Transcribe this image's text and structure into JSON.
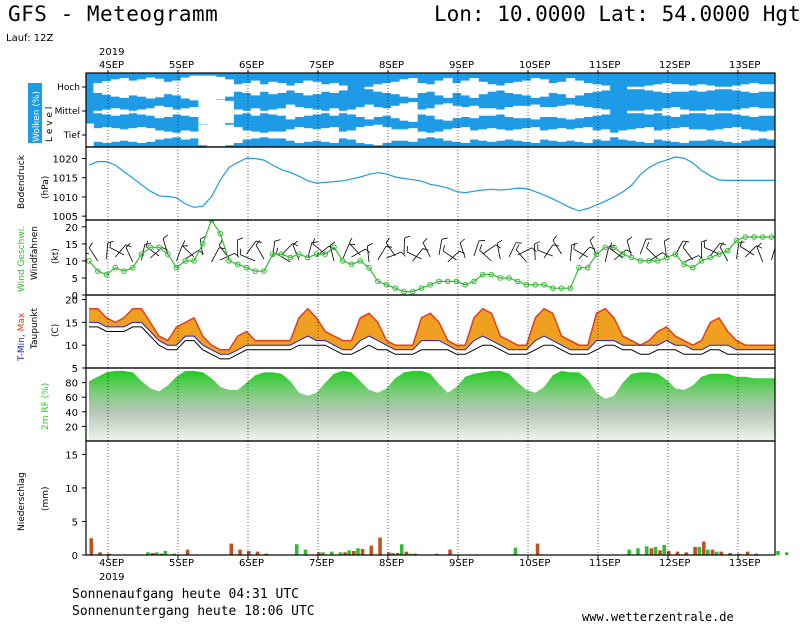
{
  "header": {
    "title": "GFS - Meteogramm",
    "coords": "Lon: 10.0000 Lat: 54.0000 Hgt: 2",
    "run": "Lauf: 12Z"
  },
  "footer": {
    "sunrise": "Sonnenaufgang heute 04:31 UTC",
    "sunset": "Sonnenuntergang heute 18:06 UTC",
    "url": "www.wetterzentrale.de"
  },
  "chart_data": {
    "type": "meteogram",
    "year": "2019",
    "days": [
      "4SEP",
      "5SEP",
      "6SEP",
      "7SEP",
      "8SEP",
      "9SEP",
      "10SEP",
      "11SEP",
      "12SEP",
      "13SEP"
    ],
    "time_step_hours": 3,
    "colors": {
      "cloud_sky": "#1e9be6",
      "pressure_line": "#1e9be6",
      "wind_line": "#33bb33",
      "tmax_fill": "#f0a020",
      "tmax_edge": "#e04020",
      "tmin_line": "#2020d0",
      "dewpoint_line": "#000000",
      "rh_fill": "#22cc22",
      "precip_conv": "#c05020",
      "precip_large": "#33bb33"
    },
    "panels": [
      {
        "id": "clouds",
        "ylabel": "Wolken (%)",
        "ylabel_sub": "L e v e l",
        "levels": [
          "Hoch",
          "Mittel",
          "Tief"
        ],
        "series": [
          {
            "name": "Hoch",
            "values": [
              0,
              40,
              55,
              70,
              80,
              60,
              70,
              85,
              75,
              50,
              60,
              85,
              100,
              100,
              100,
              90,
              70,
              30,
              40,
              60,
              30,
              50,
              40,
              20,
              40,
              60,
              50,
              30,
              40,
              20,
              0,
              0,
              10,
              30,
              40,
              50,
              70,
              80,
              40,
              30,
              60,
              80,
              40,
              60,
              80,
              50,
              30,
              20,
              40,
              50,
              60,
              80,
              70,
              40,
              50,
              80,
              60,
              40,
              30,
              20,
              0,
              0,
              10,
              10,
              20,
              30,
              40,
              30,
              30,
              20,
              30,
              20,
              10,
              10,
              20,
              30,
              40,
              30,
              30,
              20,
              10,
              10
            ]
          },
          {
            "name": "Mittel",
            "values": [
              0,
              10,
              20,
              30,
              20,
              10,
              20,
              30,
              50,
              40,
              20,
              30,
              40,
              100,
              100,
              100,
              90,
              20,
              10,
              30,
              10,
              20,
              30,
              60,
              40,
              30,
              20,
              10,
              30,
              10,
              20,
              40,
              60,
              40,
              30,
              50,
              70,
              80,
              20,
              30,
              60,
              70,
              50,
              40,
              50,
              30,
              30,
              20,
              40,
              50,
              50,
              60,
              40,
              40,
              50,
              60,
              50,
              40,
              30,
              20,
              0,
              0,
              10,
              10,
              20,
              10,
              30,
              40,
              20,
              10,
              10,
              20,
              10,
              10,
              20,
              30,
              40,
              30,
              30,
              20,
              10,
              10
            ]
          },
          {
            "name": "Tief",
            "values": [
              100,
              60,
              70,
              60,
              50,
              60,
              70,
              60,
              40,
              30,
              20,
              40,
              30,
              90,
              100,
              100,
              90,
              70,
              40,
              30,
              20,
              30,
              30,
              50,
              70,
              60,
              50,
              60,
              70,
              30,
              40,
              70,
              80,
              90,
              70,
              50,
              50,
              60,
              30,
              20,
              30,
              50,
              60,
              70,
              40,
              50,
              60,
              50,
              40,
              50,
              60,
              70,
              40,
              50,
              60,
              50,
              60,
              70,
              40,
              50,
              20,
              40,
              50,
              60,
              70,
              40,
              50,
              60,
              70,
              50,
              50,
              40,
              50,
              60,
              70,
              50,
              40,
              30,
              40,
              50,
              30,
              30
            ]
          }
        ]
      },
      {
        "id": "pressure",
        "ylabel": "Bodendruck",
        "ylabel_sub": "(hPa)",
        "ylim": [
          1004,
          1023
        ],
        "yticks": [
          1005,
          1010,
          1015,
          1020
        ],
        "series": [
          {
            "name": "Bodendruck",
            "values": [
              1018.3,
              1019.2,
              1019.2,
              1018.3,
              1016.6,
              1014.9,
              1013.2,
              1011.5,
              1010.3,
              1010.1,
              1009.8,
              1008.2,
              1007.3,
              1007.6,
              1010.1,
              1014.4,
              1017.7,
              1019.0,
              1020.1,
              1020.0,
              1019.6,
              1018.3,
              1017.1,
              1016.4,
              1015.4,
              1014.2,
              1013.6,
              1013.8,
              1014.0,
              1014.2,
              1014.7,
              1015.2,
              1015.9,
              1016.3,
              1016.0,
              1015.2,
              1014.8,
              1014.5,
              1014.1,
              1013.3,
              1012.9,
              1012.3,
              1011.4,
              1011.1,
              1011.5,
              1011.8,
              1012.0,
              1011.8,
              1012.0,
              1012.3,
              1012.2,
              1011.4,
              1010.5,
              1009.5,
              1008.4,
              1007.2,
              1006.4,
              1007.0,
              1007.9,
              1008.9,
              1010.0,
              1011.3,
              1013.0,
              1015.8,
              1017.6,
              1018.9,
              1019.6,
              1020.4,
              1020.1,
              1018.9,
              1016.9,
              1015.5,
              1014.4,
              1014.3,
              1014.3,
              1014.3,
              1014.3,
              1014.3,
              1014.3,
              1014.3,
              1014.3,
              1014.3
            ]
          }
        ]
      },
      {
        "id": "wind",
        "ylabel": "Wind Geschwi.",
        "ylabel_sub": "Windfahnen",
        "ylabel_unit": "(kt)",
        "ylim": [
          0,
          22
        ],
        "yticks": [
          0,
          5,
          10,
          15,
          20
        ],
        "series": [
          {
            "name": "Wind Geschwi.",
            "values": [
              10,
              7,
              6,
              8,
              7,
              8,
              12,
              14,
              14,
              12,
              8,
              10,
              10,
              15,
              22,
              18,
              10,
              9,
              8,
              7,
              7,
              12,
              12,
              11,
              12,
              11,
              12,
              12,
              14,
              10,
              9,
              10,
              8,
              4,
              3,
              2,
              1,
              1,
              2,
              3,
              4,
              4,
              4,
              3,
              4,
              6,
              6,
              5,
              5,
              4,
              3,
              3,
              3,
              2,
              2,
              2,
              8,
              8,
              12,
              14,
              14,
              12,
              11,
              10,
              10,
              10,
              11,
              12,
              9,
              8,
              10,
              11,
              12,
              13,
              16,
              17,
              17,
              17,
              17,
              17,
              17,
              17
            ]
          }
        ]
      },
      {
        "id": "temperature",
        "ylabel": "T-Min, Max",
        "ylabel_sub": "Taupunkt",
        "ylabel_unit": "(C)",
        "ylim": [
          5,
          21
        ],
        "yticks": [
          5,
          10,
          15,
          20
        ],
        "series": [
          {
            "name": "T-Max",
            "values": [
              18,
              18,
              16,
              15,
              16,
              18,
              18,
              15,
              12,
              11,
              14,
              15,
              16,
              12,
              10,
              9,
              9,
              12,
              13,
              11,
              11,
              11,
              11,
              11,
              16,
              18,
              16,
              13,
              12,
              11,
              11,
              16,
              17,
              15,
              11,
              10,
              10,
              10,
              16,
              17,
              15,
              11,
              10,
              10,
              16,
              18,
              17,
              12,
              11,
              10,
              10,
              16,
              18,
              17,
              12,
              11,
              10,
              10,
              17,
              18,
              16,
              12,
              11,
              10,
              11,
              13,
              14,
              12,
              11,
              10,
              11,
              15,
              16,
              13,
              11,
              10,
              10,
              10,
              10,
              10,
              10,
              10
            ]
          },
          {
            "name": "T-Min",
            "values": [
              15,
              15,
              14,
              14,
              14,
              15,
              15,
              13,
              11,
              10,
              10,
              12,
              12,
              10,
              9,
              8,
              8,
              9,
              10,
              10,
              10,
              10,
              10,
              10,
              11,
              12,
              11,
              11,
              10,
              9,
              9,
              11,
              12,
              11,
              10,
              9,
              9,
              9,
              11,
              11,
              11,
              10,
              9,
              9,
              11,
              12,
              11,
              10,
              9,
              9,
              9,
              11,
              12,
              11,
              10,
              9,
              9,
              9,
              11,
              11,
              11,
              10,
              10,
              10,
              10,
              10,
              11,
              10,
              10,
              9,
              9,
              10,
              10,
              10,
              9,
              9,
              9,
              9,
              9,
              9,
              9,
              9
            ]
          },
          {
            "name": "Taupunkt",
            "values": [
              14,
              14,
              13,
              13,
              13,
              14,
              14,
              12,
              10,
              9,
              9,
              11,
              11,
              9,
              8,
              7,
              7,
              8,
              9,
              9,
              9,
              9,
              9,
              9,
              10,
              10,
              10,
              10,
              9,
              8,
              8,
              9,
              10,
              9,
              9,
              8,
              8,
              8,
              9,
              9,
              9,
              9,
              8,
              8,
              9,
              10,
              10,
              9,
              8,
              8,
              8,
              9,
              10,
              10,
              9,
              8,
              8,
              8,
              9,
              10,
              10,
              9,
              9,
              8,
              8,
              9,
              9,
              9,
              8,
              8,
              8,
              9,
              9,
              8,
              8,
              8,
              8,
              8,
              8,
              8,
              8,
              8
            ]
          }
        ]
      },
      {
        "id": "humidity",
        "ylabel": "2m RF (%)",
        "ylim": [
          0,
          100
        ],
        "yticks": [
          20,
          40,
          60,
          80
        ],
        "series": [
          {
            "name": "2m RF",
            "values": [
              82,
              88,
              94,
              96,
              96,
              94,
              82,
              72,
              68,
              76,
              88,
              96,
              96,
              94,
              86,
              74,
              70,
              70,
              80,
              90,
              94,
              94,
              92,
              82,
              66,
              62,
              66,
              80,
              92,
              96,
              94,
              82,
              70,
              66,
              72,
              86,
              94,
              96,
              96,
              92,
              78,
              66,
              74,
              88,
              92,
              94,
              96,
              96,
              92,
              80,
              70,
              66,
              74,
              90,
              96,
              94,
              94,
              84,
              66,
              58,
              62,
              80,
              92,
              94,
              94,
              92,
              84,
              72,
              70,
              76,
              88,
              92,
              92,
              92,
              88,
              88,
              86,
              86,
              86,
              86,
              86,
              86
            ]
          }
        ]
      },
      {
        "id": "precipitation",
        "ylabel": "Niederschlag",
        "ylabel_sub": "(mm)",
        "ylim": [
          0,
          17
        ],
        "yticks": [
          0,
          5,
          10,
          15
        ],
        "series": [
          {
            "name": "konvektiv",
            "values": [
              2.5,
              0.4,
              0.2,
              0,
              0,
              0,
              0,
              0.3,
              0.2,
              0,
              0,
              0.8,
              0,
              0,
              0,
              0,
              1.7,
              0.8,
              0.6,
              0.5,
              0.2,
              0,
              0,
              0,
              0,
              0,
              0.4,
              0,
              0,
              0.4,
              0.6,
              0.9,
              1.4,
              2.6,
              0.4,
              0.3,
              0.5,
              0.2,
              0,
              0,
              0,
              0.8,
              0,
              0,
              0,
              0,
              0,
              0,
              0,
              0,
              0,
              1.7,
              0,
              0,
              0,
              0,
              0,
              0,
              0,
              0,
              0,
              0,
              0,
              0,
              1.0,
              0.7,
              0.6,
              0.5,
              0.4,
              1.2,
              2.0,
              0.8,
              0.5,
              0.3,
              0.2,
              0.5,
              0.2,
              0,
              0,
              0,
              0,
              0
            ]
          },
          {
            "name": "grossraeumig",
            "values": [
              0,
              0,
              0,
              0,
              0,
              0,
              0,
              0.4,
              0.4,
              0.6,
              0.2,
              0,
              0,
              0,
              0,
              0,
              0,
              0,
              0,
              0,
              0,
              0,
              0,
              0,
              1.6,
              0.8,
              0,
              0.4,
              0.5,
              0.4,
              0.7,
              1.0,
              0,
              0,
              0,
              0.3,
              1.6,
              0.2,
              0,
              0,
              0.2,
              0,
              0,
              0,
              0,
              0,
              0,
              0,
              0,
              1.1,
              0,
              0,
              0,
              0,
              0,
              0,
              0,
              0,
              0,
              0,
              0,
              0,
              0.8,
              1.0,
              1.3,
              1.2,
              1.5,
              0,
              0,
              0,
              1.2,
              0.8,
              0.5,
              0,
              0,
              0,
              0,
              0,
              0,
              0.6,
              0.4,
              0
            ]
          }
        ]
      }
    ]
  }
}
